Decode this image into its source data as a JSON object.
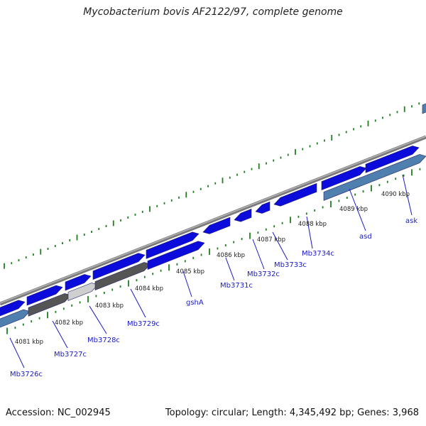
{
  "title": "Mycobacterium bovis AF2122/97, complete genome",
  "footer": {
    "accession": "Accession: NC_002945",
    "summary": "Topology: circular; Length: 4,345,492 bp; Genes: 3,968"
  },
  "colors": {
    "gene_blue": "#0b0bdc",
    "gene_dark_grey": "#555555",
    "gene_light_grey": "#cfcfcf",
    "steel_blue": "#4e7fae",
    "backbone_grey": "#8a8a8a",
    "tick_green": "#1f7f1f",
    "label_blue": "#1a1acc"
  },
  "tick_labels": [
    "4081 kbp",
    "4082 kbp",
    "4083 kbp",
    "4084 kbp",
    "4085 kbp",
    "4086 kbp",
    "4087 kbp",
    "4088 kbp",
    "4089 kbp",
    "4090 kbp"
  ],
  "gene_labels": [
    "Mb3726c",
    "Mb3727c",
    "Mb3728c",
    "Mb3729c",
    "gshA",
    "Mb3731c",
    "Mb3732c",
    "Mb3733c",
    "Mb3734c",
    "asd",
    "ask"
  ]
}
